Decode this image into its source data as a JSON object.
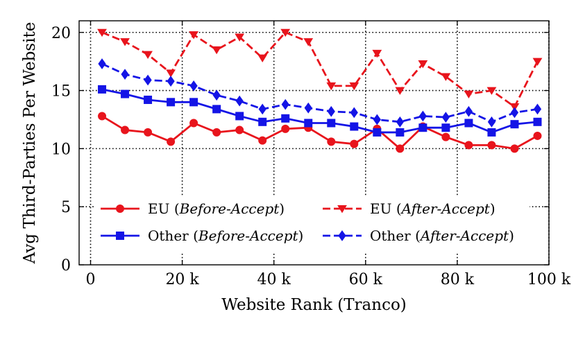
{
  "chart_data": {
    "type": "line",
    "title": "",
    "xlabel": "Website Rank (Tranco)",
    "ylabel": "Avg Third-Parties Per Website",
    "xlim": [
      -2500,
      100000
    ],
    "ylim": [
      0,
      21
    ],
    "xticks": [
      0,
      20000,
      40000,
      60000,
      80000,
      100000
    ],
    "xtick_labels": [
      "0",
      "20 k",
      "40 k",
      "60 k",
      "80 k",
      "100 k"
    ],
    "yticks": [
      0,
      5,
      10,
      15,
      20
    ],
    "ytick_labels": [
      "0",
      "5",
      "10",
      "15",
      "20"
    ],
    "grid": true,
    "legend_position": "lower-center",
    "x": [
      2500,
      7500,
      12500,
      17500,
      22500,
      27500,
      32500,
      37500,
      42500,
      47500,
      52500,
      57500,
      62500,
      67500,
      72500,
      77500,
      82500,
      87500,
      92500,
      97500
    ],
    "series": [
      {
        "name": "EU (Before-Accept)",
        "label_main": "EU (",
        "label_italic": "Before-Accept",
        "label_close": ")",
        "color": "#e8141c",
        "linestyle": "solid",
        "marker": "circle",
        "values": [
          12.8,
          11.6,
          11.4,
          10.6,
          12.2,
          11.4,
          11.6,
          10.7,
          11.7,
          11.8,
          10.6,
          10.4,
          11.7,
          10.0,
          11.9,
          11.0,
          10.3,
          10.3,
          10.0,
          11.1
        ]
      },
      {
        "name": "Other (Before-Accept)",
        "label_main": "Other (",
        "label_italic": "Before-Accept",
        "label_close": ")",
        "color": "#1414e6",
        "linestyle": "solid",
        "marker": "square",
        "values": [
          15.1,
          14.7,
          14.2,
          14.0,
          14.0,
          13.4,
          12.8,
          12.3,
          12.6,
          12.2,
          12.2,
          11.9,
          11.4,
          11.4,
          11.8,
          11.8,
          12.2,
          11.4,
          12.1,
          12.3
        ]
      },
      {
        "name": "EU (After-Accept)",
        "label_main": "EU (",
        "label_italic": "After-Accept",
        "label_close": ")",
        "color": "#e8141c",
        "linestyle": "dashed",
        "marker": "triangle-down",
        "values": [
          20.0,
          19.2,
          18.1,
          16.5,
          19.8,
          18.5,
          19.6,
          17.8,
          20.0,
          19.2,
          15.4,
          15.4,
          18.2,
          15.0,
          17.3,
          16.2,
          14.7,
          15.0,
          13.6,
          17.5
        ]
      },
      {
        "name": "Other (After-Accept)",
        "label_main": "Other (",
        "label_italic": "After-Accept",
        "label_close": ")",
        "color": "#1414e6",
        "linestyle": "dashed",
        "marker": "diamond",
        "values": [
          17.3,
          16.4,
          15.9,
          15.8,
          15.4,
          14.6,
          14.1,
          13.4,
          13.8,
          13.5,
          13.2,
          13.1,
          12.5,
          12.3,
          12.8,
          12.7,
          13.2,
          12.3,
          13.1,
          13.4
        ]
      }
    ]
  }
}
